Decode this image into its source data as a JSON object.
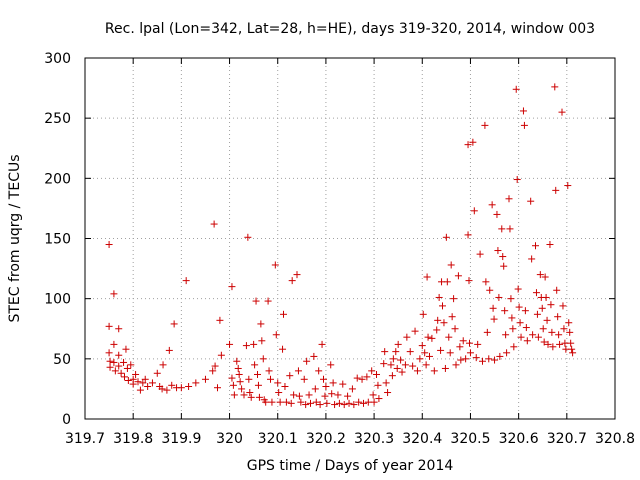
{
  "chart_data": {
    "type": "scatter",
    "title": "Rec. lpal (Lon=342, Lat=28, h=HE), days 319-320, 2014, window 003",
    "xlabel": "GPS time / Days of year 2014",
    "ylabel": "STEC from uqrg / TECUs",
    "xlim": [
      319.7,
      320.8
    ],
    "ylim": [
      0,
      300
    ],
    "x_ticks": [
      319.7,
      319.8,
      319.9,
      320.0,
      320.1,
      320.2,
      320.3,
      320.4,
      320.5,
      320.6,
      320.7,
      320.8
    ],
    "x_tick_labels": [
      "319.7",
      "319.8",
      "319.9",
      "320",
      "320.1",
      "320.2",
      "320.3",
      "320.4",
      "320.5",
      "320.6",
      "320.7",
      "320.8"
    ],
    "y_ticks": [
      0,
      50,
      100,
      150,
      200,
      250,
      300
    ],
    "y_tick_labels": [
      "0",
      "50",
      "100",
      "150",
      "200",
      "250",
      "300"
    ],
    "grid": true,
    "marker": "+",
    "color": "#cc0000",
    "series": [
      {
        "name": "STEC",
        "points": [
          [
            319.75,
            145
          ],
          [
            319.75,
            77
          ],
          [
            319.75,
            55
          ],
          [
            319.752,
            48
          ],
          [
            319.752,
            43
          ],
          [
            319.76,
            104
          ],
          [
            319.76,
            62
          ],
          [
            319.76,
            47
          ],
          [
            319.763,
            40
          ],
          [
            319.77,
            75
          ],
          [
            319.77,
            53
          ],
          [
            319.77,
            44
          ],
          [
            319.775,
            38
          ],
          [
            319.78,
            47
          ],
          [
            319.782,
            35
          ],
          [
            319.785,
            58
          ],
          [
            319.788,
            42
          ],
          [
            319.79,
            32
          ],
          [
            319.795,
            45
          ],
          [
            319.8,
            33
          ],
          [
            319.8,
            29
          ],
          [
            319.805,
            37
          ],
          [
            319.81,
            31
          ],
          [
            319.815,
            24
          ],
          [
            319.82,
            30
          ],
          [
            319.825,
            33
          ],
          [
            319.83,
            27
          ],
          [
            319.84,
            30
          ],
          [
            319.85,
            38
          ],
          [
            319.855,
            27
          ],
          [
            319.86,
            25
          ],
          [
            319.862,
            45
          ],
          [
            319.87,
            24
          ],
          [
            319.875,
            57
          ],
          [
            319.88,
            28
          ],
          [
            319.885,
            79
          ],
          [
            319.89,
            26
          ],
          [
            319.9,
            26
          ],
          [
            319.91,
            115
          ],
          [
            319.915,
            27
          ],
          [
            319.93,
            30
          ],
          [
            319.95,
            33
          ],
          [
            319.965,
            40
          ],
          [
            319.968,
            162
          ],
          [
            319.97,
            44
          ],
          [
            319.975,
            26
          ],
          [
            319.98,
            82
          ],
          [
            319.983,
            53
          ],
          [
            320.0,
            62
          ],
          [
            320.005,
            110
          ],
          [
            320.005,
            34
          ],
          [
            320.008,
            28
          ],
          [
            320.01,
            20
          ],
          [
            320.015,
            48
          ],
          [
            320.018,
            42
          ],
          [
            320.02,
            37
          ],
          [
            320.022,
            31
          ],
          [
            320.025,
            25
          ],
          [
            320.03,
            20
          ],
          [
            320.035,
            61
          ],
          [
            320.038,
            151
          ],
          [
            320.04,
            33
          ],
          [
            320.042,
            22
          ],
          [
            320.045,
            18
          ],
          [
            320.05,
            62
          ],
          [
            320.052,
            45
          ],
          [
            320.055,
            98
          ],
          [
            320.058,
            37
          ],
          [
            320.06,
            28
          ],
          [
            320.062,
            18
          ],
          [
            320.065,
            79
          ],
          [
            320.067,
            65
          ],
          [
            320.07,
            50
          ],
          [
            320.072,
            16
          ],
          [
            320.075,
            14
          ],
          [
            320.08,
            98
          ],
          [
            320.082,
            40
          ],
          [
            320.085,
            33
          ],
          [
            320.088,
            14
          ],
          [
            320.095,
            128
          ],
          [
            320.097,
            70
          ],
          [
            320.1,
            30
          ],
          [
            320.102,
            22
          ],
          [
            320.105,
            14
          ],
          [
            320.11,
            58
          ],
          [
            320.112,
            87
          ],
          [
            320.115,
            27
          ],
          [
            320.118,
            14
          ],
          [
            320.125,
            36
          ],
          [
            320.128,
            13
          ],
          [
            320.13,
            115
          ],
          [
            320.133,
            20
          ],
          [
            320.14,
            120
          ],
          [
            320.143,
            40
          ],
          [
            320.145,
            19
          ],
          [
            320.148,
            14
          ],
          [
            320.155,
            33
          ],
          [
            320.158,
            12
          ],
          [
            320.16,
            48
          ],
          [
            320.165,
            20
          ],
          [
            320.168,
            13
          ],
          [
            320.175,
            52
          ],
          [
            320.178,
            25
          ],
          [
            320.18,
            14
          ],
          [
            320.185,
            40
          ],
          [
            320.188,
            12
          ],
          [
            320.192,
            62
          ],
          [
            320.195,
            33
          ],
          [
            320.198,
            19
          ],
          [
            320.2,
            27
          ],
          [
            320.202,
            13
          ],
          [
            320.21,
            45
          ],
          [
            320.212,
            21
          ],
          [
            320.215,
            30
          ],
          [
            320.218,
            12
          ],
          [
            320.225,
            20
          ],
          [
            320.228,
            13
          ],
          [
            320.235,
            29
          ],
          [
            320.238,
            12
          ],
          [
            320.245,
            19
          ],
          [
            320.248,
            13
          ],
          [
            320.255,
            25
          ],
          [
            320.258,
            12
          ],
          [
            320.265,
            34
          ],
          [
            320.268,
            14
          ],
          [
            320.275,
            33
          ],
          [
            320.278,
            13
          ],
          [
            320.285,
            35
          ],
          [
            320.288,
            14
          ],
          [
            320.295,
            40
          ],
          [
            320.298,
            20
          ],
          [
            320.3,
            14
          ],
          [
            320.305,
            37
          ],
          [
            320.308,
            28
          ],
          [
            320.31,
            17
          ],
          [
            320.32,
            46
          ],
          [
            320.322,
            56
          ],
          [
            320.325,
            30
          ],
          [
            320.328,
            22
          ],
          [
            320.335,
            45
          ],
          [
            320.338,
            36
          ],
          [
            320.34,
            50
          ],
          [
            320.345,
            56
          ],
          [
            320.348,
            42
          ],
          [
            320.35,
            62
          ],
          [
            320.355,
            49
          ],
          [
            320.358,
            39
          ],
          [
            320.365,
            45
          ],
          [
            320.368,
            68
          ],
          [
            320.375,
            56
          ],
          [
            320.38,
            44
          ],
          [
            320.385,
            73
          ],
          [
            320.39,
            40
          ],
          [
            320.395,
            50
          ],
          [
            320.4,
            61
          ],
          [
            320.402,
            87
          ],
          [
            320.405,
            55
          ],
          [
            320.408,
            45
          ],
          [
            320.41,
            118
          ],
          [
            320.412,
            68
          ],
          [
            320.415,
            52
          ],
          [
            320.42,
            67
          ],
          [
            320.425,
            40
          ],
          [
            320.43,
            74
          ],
          [
            320.432,
            82
          ],
          [
            320.435,
            101
          ],
          [
            320.438,
            57
          ],
          [
            320.44,
            114
          ],
          [
            320.442,
            94
          ],
          [
            320.445,
            80
          ],
          [
            320.448,
            42
          ],
          [
            320.45,
            151
          ],
          [
            320.452,
            114
          ],
          [
            320.455,
            68
          ],
          [
            320.458,
            55
          ],
          [
            320.46,
            128
          ],
          [
            320.462,
            85
          ],
          [
            320.465,
            100
          ],
          [
            320.468,
            75
          ],
          [
            320.47,
            45
          ],
          [
            320.475,
            119
          ],
          [
            320.478,
            60
          ],
          [
            320.48,
            49
          ],
          [
            320.485,
            65
          ],
          [
            320.49,
            50
          ],
          [
            320.495,
            228
          ],
          [
            320.495,
            153
          ],
          [
            320.497,
            115
          ],
          [
            320.498,
            63
          ],
          [
            320.5,
            55
          ],
          [
            320.505,
            230
          ],
          [
            320.508,
            173
          ],
          [
            320.512,
            51
          ],
          [
            320.515,
            62
          ],
          [
            320.52,
            137
          ],
          [
            320.525,
            48
          ],
          [
            320.53,
            244
          ],
          [
            320.532,
            114
          ],
          [
            320.535,
            72
          ],
          [
            320.538,
            50
          ],
          [
            320.54,
            107
          ],
          [
            320.545,
            178
          ],
          [
            320.547,
            92
          ],
          [
            320.549,
            83
          ],
          [
            320.55,
            49
          ],
          [
            320.555,
            170
          ],
          [
            320.557,
            140
          ],
          [
            320.559,
            101
          ],
          [
            320.561,
            52
          ],
          [
            320.565,
            158
          ],
          [
            320.567,
            135
          ],
          [
            320.569,
            127
          ],
          [
            320.571,
            90
          ],
          [
            320.573,
            70
          ],
          [
            320.575,
            55
          ],
          [
            320.58,
            183
          ],
          [
            320.582,
            158
          ],
          [
            320.584,
            100
          ],
          [
            320.586,
            84
          ],
          [
            320.588,
            75
          ],
          [
            320.59,
            60
          ],
          [
            320.595,
            274
          ],
          [
            320.597,
            199
          ],
          [
            320.599,
            108
          ],
          [
            320.601,
            93
          ],
          [
            320.603,
            80
          ],
          [
            320.605,
            68
          ],
          [
            320.61,
            256
          ],
          [
            320.612,
            244
          ],
          [
            320.614,
            90
          ],
          [
            320.616,
            76
          ],
          [
            320.618,
            65
          ],
          [
            320.625,
            181
          ],
          [
            320.627,
            133
          ],
          [
            320.629,
            70
          ],
          [
            320.635,
            144
          ],
          [
            320.637,
            105
          ],
          [
            320.639,
            87
          ],
          [
            320.641,
            68
          ],
          [
            320.645,
            120
          ],
          [
            320.647,
            101
          ],
          [
            320.649,
            92
          ],
          [
            320.651,
            75
          ],
          [
            320.653,
            64
          ],
          [
            320.655,
            118
          ],
          [
            320.657,
            101
          ],
          [
            320.659,
            82
          ],
          [
            320.661,
            62
          ],
          [
            320.665,
            145
          ],
          [
            320.667,
            95
          ],
          [
            320.669,
            72
          ],
          [
            320.671,
            60
          ],
          [
            320.675,
            276
          ],
          [
            320.677,
            190
          ],
          [
            320.679,
            107
          ],
          [
            320.681,
            85
          ],
          [
            320.683,
            70
          ],
          [
            320.685,
            62
          ],
          [
            320.69,
            255
          ],
          [
            320.692,
            94
          ],
          [
            320.694,
            75
          ],
          [
            320.696,
            63
          ],
          [
            320.698,
            58
          ],
          [
            320.702,
            194
          ],
          [
            320.704,
            80
          ],
          [
            320.706,
            72
          ],
          [
            320.708,
            63
          ],
          [
            320.71,
            58
          ],
          [
            320.712,
            55
          ]
        ]
      }
    ]
  }
}
